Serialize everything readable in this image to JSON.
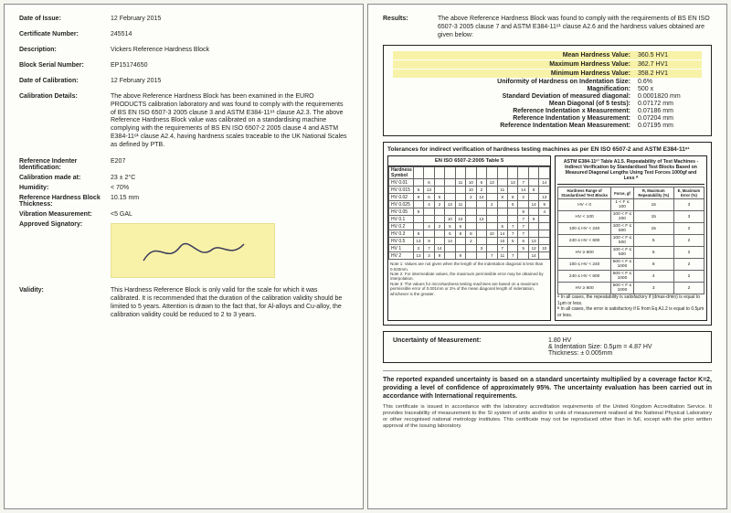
{
  "left": {
    "date_of_issue": {
      "label": "Date of Issue:",
      "value": "12 February 2015"
    },
    "cert_no": {
      "label": "Certificate Number:",
      "value": "245514"
    },
    "description": {
      "label": "Description:",
      "value": "Vickers Reference Hardness Block"
    },
    "serial": {
      "label": "Block Serial Number:",
      "value": "EP15174650"
    },
    "date_cal": {
      "label": "Date of Calibration:",
      "value": "12 February 2015"
    },
    "cal_details": {
      "label": "Calibration Details:",
      "value": "The above Reference Hardness Block has been examined in the EURO PRODUCTS calibration laboratory and was found to comply with the requirements of BS EN ISO 6507-3 2005 clause 3 and ASTM E384-11ᵉ¹ clause A2.3. The above Reference Hardness Block value was calibrated on a standardising machine complying with the requirements of BS EN ISO 6507-2 2005 clause 4 and ASTM E384-11ᵉ¹ clause A2.4, having hardness scales traceable to the UK National Scales as defined by PTB."
    },
    "indenter": {
      "label": "Reference Indenter Identification:",
      "value": "E207"
    },
    "cal_at": {
      "label": "Calibration made at:",
      "value": "23 ± 2°C"
    },
    "humidity": {
      "label": "Humidity:",
      "value": "< 70%"
    },
    "thickness": {
      "label": "Reference Hardness Block Thickness:",
      "value": "10.15 mm"
    },
    "vibration": {
      "label": "Vibration Measurement:",
      "value": "<5 GAL"
    },
    "approved": {
      "label": "Approved Signatory:"
    },
    "validity": {
      "label": "Validity:",
      "value": "This Hardness Reference Block is only valid for the scale for which it was calibrated. It is recommended that the duration of the calibration validity should be limited to 5 years. Attention is drawn to the fact that, for Al-alloys and Cu-alloy, the calibration validity could be reduced to 2 to 3 years."
    }
  },
  "right": {
    "results": {
      "label": "Results:",
      "text": "The above Reference Hardness Block was found to comply with the requirements of BS EN ISO 6507-3 2005 clause 7 and ASTM E384-11ᵉ¹ clause A2.6 and the hardness values obtained are given below:"
    },
    "hv": {
      "mean": {
        "k": "Mean Hardness Value:",
        "v": "360.5  HV1"
      },
      "max": {
        "k": "Maximum Hardness Value:",
        "v": "362.7  HV1"
      },
      "min": {
        "k": "Minimum Hardness Value:",
        "v": "358.2  HV1"
      },
      "uniformity": {
        "k": "Uniformity of Hardness on Indentation Size:",
        "v": "0.6%"
      },
      "mag": {
        "k": "Magnification:",
        "v": "500 x"
      },
      "sd": {
        "k": "Standard Deviation of measured diagonal:",
        "v": "0.0001820 mm"
      },
      "diag": {
        "k": "Mean Diagonal (of 5 tests):",
        "v": "0.07172 mm"
      },
      "rx": {
        "k": "Reference Indentation x Measurement:",
        "v": "0.07186 mm"
      },
      "ry": {
        "k": "Reference Indentation y Measurement:",
        "v": "0.07204 mm"
      },
      "rmean": {
        "k": "Reference Indentation Mean Measurement:",
        "v": "0.07195 mm"
      }
    },
    "tol": {
      "title": "Tolerances for indirect verification of hardness testing machines as per EN ISO 6507-2 and ASTM E384-11ᵉ¹",
      "left_head": "EN ISO 6507-2:2005 Table 5",
      "right_head": "ASTM E384-11ᵉ¹ Table A1.5. Repeatability of Test Machines - Indirect Verification by Standardised Test Blocks Based on Measured Diagonal Lengths Using Test Forces 1000gf and Less ᴬ",
      "rows": [
        "HV 0.01",
        "HV 0.015",
        "HV 0.02",
        "HV 0.025",
        "HV 0.05",
        "HV 0.1",
        "HV 0.2",
        "HV 0.3",
        "HV 0.5",
        "HV 1",
        "HV 2"
      ],
      "note1": "Note 1: Values are not given when the length of the indentation diagonal is less than 0.020mm.",
      "note2": "Note 2: For intermediate values, the maximum permissible error may be obtained by interpolation.",
      "note3": "Note 3: The values for microhardness testing machines are based on a maximum permissible error of 0.001mm or 2% of the mean diagonal length of indentation, whichever is the greater.",
      "right_rows": [
        [
          "HV < 0",
          "1 < F ≤ 100",
          "15",
          "3"
        ],
        [
          "HV < 100",
          "100 < F ≤ 200",
          "15",
          "3"
        ],
        [
          "100 ≤ HV < 240",
          "100 < F ≤ 500",
          "15",
          "2"
        ],
        [
          "240 ≤ HV < 600",
          "100 < F ≤ 500",
          "5",
          "2"
        ],
        [
          "HV ≥ 600",
          "100 < F ≤ 500",
          "5",
          "2"
        ],
        [
          "100 ≤ HV < 240",
          "500 < F ≤ 1000",
          "8",
          "2"
        ],
        [
          "240 ≤ HV < 600",
          "500 < F ≤ 1000",
          "4",
          "2"
        ],
        [
          "HV ≥ 600",
          "500 < F ≤ 1000",
          "3",
          "2"
        ]
      ],
      "right_foot1": "ᴬ In all cases, the repeatability is satisfactory if (dmax-dmin) is equal to 1μm or less.",
      "right_foot2": "ᴮ In all cases, the error is satisfactory if E from Eq A1.2 is equal to 0.5μm or less."
    },
    "um": {
      "label": "Uncertainty of Measurement:",
      "l1": "1.80 HV",
      "l2": "& Indentation Size: 0.5μm = 4.87 HV",
      "l3": "Thickness: ± 0.005mm"
    },
    "footer_bold": "The reported expanded uncertainty is based on a standard uncertainty multiplied by a coverage factor K=2, providing a level of confidence of approximately 95%. The uncertainty evaluation has been carried out in accordance with International requirements.",
    "footer_small": "This certificate is issued in accordance with the laboratory accreditation requirements of the United Kingdom Accreditation Service. It provides traceability of measurement to the SI system of units and/or to units of measurement realised at the National Physical Laboratory or other recognised national metrology institutes. This certificate may not be reproduced other than in full, except with the prior written approval of the issuing laboratory."
  }
}
